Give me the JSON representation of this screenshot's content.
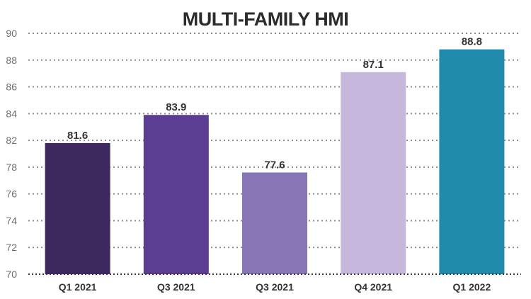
{
  "chart_data": {
    "type": "bar",
    "title": "MULTI-FAMILY HMI",
    "categories": [
      "Q1 2021",
      "Q3 2021",
      "Q3 2021",
      "Q4 2021",
      "Q1 2022"
    ],
    "values": [
      81.6,
      83.9,
      77.6,
      87.1,
      88.8
    ],
    "data_labels": [
      "81.6",
      "83.9",
      "77.6",
      "87.1",
      "88.8"
    ],
    "bar_colors": [
      "#3d2960",
      "#5b3d91",
      "#8875b5",
      "#c5b8dc",
      "#1f8aab"
    ],
    "y_ticks": [
      "70",
      "72",
      "74",
      "76",
      "78",
      "82",
      "84",
      "86",
      "88",
      "90"
    ],
    "grid": true,
    "legend": "none"
  }
}
